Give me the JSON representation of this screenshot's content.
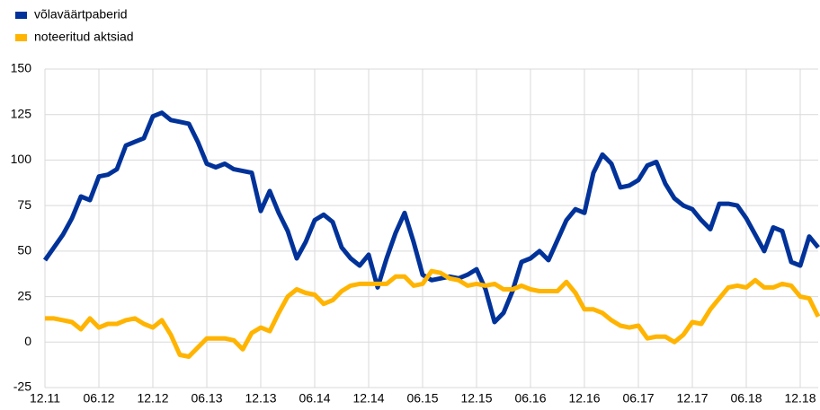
{
  "chart_data": {
    "type": "line",
    "categories": [
      "12.11",
      null,
      null,
      null,
      null,
      null,
      "06.12",
      null,
      null,
      null,
      null,
      null,
      "12.12",
      null,
      null,
      null,
      null,
      null,
      "06.13",
      null,
      null,
      null,
      null,
      null,
      "12.13",
      null,
      null,
      null,
      null,
      null,
      "06.14",
      null,
      null,
      null,
      null,
      null,
      "12.14",
      null,
      null,
      null,
      null,
      null,
      "06.15",
      null,
      null,
      null,
      null,
      null,
      "12.15",
      null,
      null,
      null,
      null,
      null,
      "06.16",
      null,
      null,
      null,
      null,
      null,
      "12.16",
      null,
      null,
      null,
      null,
      null,
      "06.17",
      null,
      null,
      null,
      null,
      null,
      "12.17",
      null,
      null,
      null,
      null,
      null,
      "06.18",
      null,
      null,
      null,
      null,
      null,
      "12.18",
      null,
      null
    ],
    "series": [
      {
        "name": "võlaväärtpaberid",
        "color": "#003299",
        "values": [
          45,
          52,
          59,
          68,
          80,
          78,
          91,
          92,
          95,
          108,
          110,
          112,
          124,
          126,
          122,
          121,
          120,
          110,
          98,
          96,
          98,
          95,
          94,
          93,
          72,
          83,
          71,
          61,
          46,
          55,
          67,
          70,
          66,
          52,
          46,
          42,
          48,
          30,
          46,
          60,
          71,
          55,
          37,
          34,
          35,
          36,
          35,
          37,
          40,
          29,
          11,
          16,
          28,
          44,
          46,
          50,
          45,
          56,
          67,
          73,
          71,
          93,
          103,
          98,
          85,
          86,
          89,
          97,
          99,
          87,
          79,
          75,
          73,
          67,
          62,
          76,
          76,
          75,
          68,
          59,
          50,
          63,
          61,
          44,
          42,
          58,
          52
        ]
      },
      {
        "name": "noteeritud aktsiad",
        "color": "#ffb400",
        "values": [
          13,
          13,
          12,
          11,
          7,
          13,
          8,
          10,
          10,
          12,
          13,
          10,
          8,
          12,
          4,
          -7,
          -8,
          -3,
          2,
          2,
          2,
          1,
          -4,
          5,
          8,
          6,
          16,
          25,
          29,
          27,
          26,
          21,
          23,
          28,
          31,
          32,
          32,
          32,
          32,
          36,
          36,
          31,
          32,
          39,
          38,
          35,
          34,
          31,
          32,
          31,
          32,
          29,
          29,
          31,
          29,
          28,
          28,
          28,
          33,
          27,
          18,
          18,
          16,
          12,
          9,
          8,
          9,
          2,
          3,
          3,
          0,
          4,
          11,
          10,
          18,
          24,
          30,
          31,
          30,
          34,
          30,
          30,
          32,
          31,
          25,
          24,
          14
        ]
      }
    ],
    "ylim": [
      -25,
      150
    ],
    "yticks": [
      -25,
      0,
      25,
      50,
      75,
      100,
      125,
      150
    ],
    "grid": true,
    "legend": "top-left"
  }
}
